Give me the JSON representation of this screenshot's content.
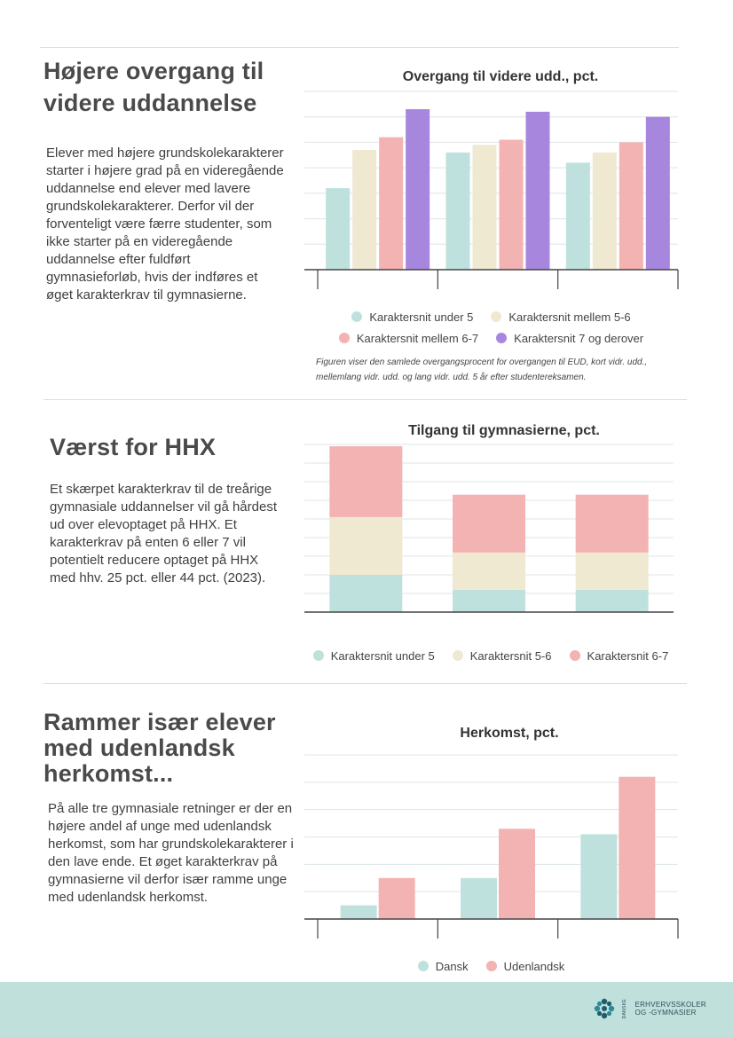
{
  "section1": {
    "heading": "Højere overgang til videre uddannelse",
    "body": "Elever med højere grundskolekarakterer starter i højere grad på en videregående uddannelse end elever med lavere grundskolekarakterer. Derfor vil der forventeligt være færre studenter, som ikke starter på en videregående uddannelse efter fuldført gymnasieforløb, hvis der indføres et øget karakterkrav til gymnasierne.",
    "note": "Figuren viser den samlede overgangsprocent for overgangen til EUD, kort vidr. udd., mellemlang vidr. udd. og lang vidr. udd. 5 år efter studentereksamen."
  },
  "section2": {
    "heading": "Værst for HHX",
    "body": "Et skærpet karakterkrav til de treårige gymnasiale uddannelser vil gå hårdest ud over elevoptaget på HHX. Et karakterkrav på enten 6 eller 7 vil potentielt reducere optaget på HHX med hhv. 25 pct. eller 44 pct. (2023)."
  },
  "section3": {
    "heading": "Rammer især elever med udenlandsk herkomst...",
    "body": "På alle tre gymnasiale retninger er der en højere andel af unge med udenlandsk herkomst, som har grundskolekarakterer i den lave ende. Et øget karakterkrav på gymnasierne vil derfor især ramme unge med udenlandsk herkomst."
  },
  "colors": {
    "teal": "#bfe1dd",
    "cream": "#efe9d2",
    "pink": "#f2b3b2",
    "purple": "#a787dd",
    "footer": "#c0e0dc",
    "grid": "#dde6e5"
  },
  "footer": {
    "logo_icon": "flower-logo-icon",
    "logo_line1": "ERHVERVSSKOLER",
    "logo_line2": "OG -GYMNASIER",
    "logo_side": "DANSKE"
  },
  "chart_data": [
    {
      "type": "bar",
      "title": "Overgang til videre udd., pct.",
      "categories": [
        "",
        "",
        ""
      ],
      "ylim": [
        0,
        7
      ],
      "grid": true,
      "legend_position": "bottom",
      "series": [
        {
          "name": "Karaktersnit under 5",
          "color": "#bfe1dd",
          "values": [
            3.2,
            4.6,
            4.2
          ]
        },
        {
          "name": "Karaktersnit mellem 5-6",
          "color": "#efe9d2",
          "values": [
            4.7,
            4.9,
            4.6
          ]
        },
        {
          "name": "Karaktersnit mellem 6-7",
          "color": "#f2b3b2",
          "values": [
            5.2,
            5.1,
            5.0
          ]
        },
        {
          "name": "Karaktersnit 7 og derover",
          "color": "#a787dd",
          "values": [
            6.3,
            6.2,
            6.0
          ]
        }
      ]
    },
    {
      "type": "bar",
      "stacked": true,
      "title": "Tilgang til gymnasierne, pct.",
      "categories": [
        "",
        "",
        ""
      ],
      "ylim": [
        0,
        9
      ],
      "grid": true,
      "legend_position": "bottom",
      "series": [
        {
          "name": "Karaktersnit under 5",
          "color": "#bfe1dd",
          "values": [
            2.0,
            1.2,
            1.2
          ]
        },
        {
          "name": "Karaktersnit 5-6",
          "color": "#efe9d2",
          "values": [
            3.1,
            2.0,
            2.0
          ]
        },
        {
          "name": "Karaktersnit 6-7",
          "color": "#f2b3b2",
          "values": [
            3.8,
            3.1,
            3.1
          ]
        }
      ]
    },
    {
      "type": "bar",
      "title": "Herkomst, pct.",
      "categories": [
        "",
        "",
        ""
      ],
      "ylim": [
        0,
        6
      ],
      "grid": true,
      "legend_position": "bottom",
      "series": [
        {
          "name": "Dansk",
          "color": "#bfe1dd",
          "values": [
            0.5,
            1.5,
            3.1
          ]
        },
        {
          "name": "Udenlandsk",
          "color": "#f2b3b2",
          "values": [
            1.5,
            3.3,
            5.2
          ]
        }
      ]
    }
  ]
}
